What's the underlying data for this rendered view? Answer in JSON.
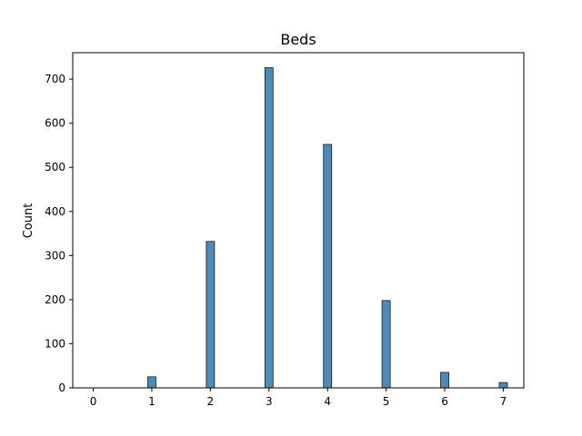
{
  "chart_data": {
    "type": "bar",
    "title": "Beds",
    "xlabel": "",
    "ylabel": "Count",
    "xlim": [
      -0.35,
      7.35
    ],
    "ylim": [
      0,
      760
    ],
    "x_ticks": [
      0,
      1,
      2,
      3,
      4,
      5,
      6,
      7
    ],
    "y_ticks": [
      0,
      100,
      200,
      300,
      400,
      500,
      600,
      700
    ],
    "bar_width": 0.14,
    "x": [
      1,
      2,
      3,
      4,
      5,
      6,
      7
    ],
    "values": [
      25,
      332,
      726,
      552,
      198,
      35,
      12
    ],
    "colors": {
      "bar": "#4b8ab9",
      "edge": "#1a1a1a"
    },
    "grid": false
  }
}
